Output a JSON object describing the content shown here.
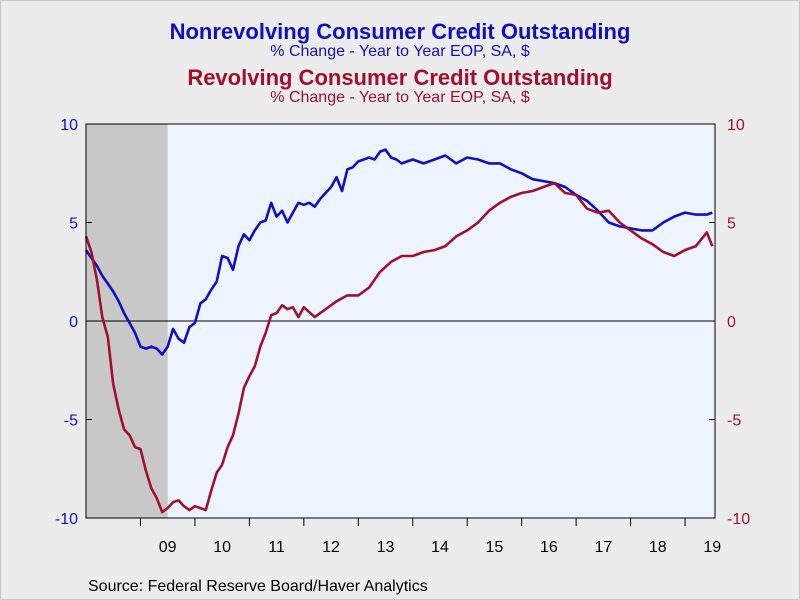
{
  "titles": {
    "nonrevolving_title": "Nonrevolving Consumer Credit Outstanding",
    "nonrevolving_subtitle": "% Change - Year to Year    EOP, SA, $",
    "revolving_title": "Revolving Consumer Credit Outstanding",
    "revolving_subtitle": "% Change - Year to Year    EOP, SA, $"
  },
  "source": "Source:  Federal Reserve Board/Haver Analytics",
  "colors": {
    "nonrevolving": "#1010c0",
    "revolving": "#a01030",
    "plot_bg": "#eef4fd",
    "recession": "#c8c8c8",
    "left_axis_text": "#1010c0",
    "right_axis_text": "#a01030"
  },
  "chart_data": {
    "type": "line",
    "x_unit": "year (decimal)",
    "xlim": [
      2008.0,
      2019.55
    ],
    "ylim": [
      -10,
      10
    ],
    "left_axis_ticks": [
      "10",
      "5",
      "0",
      "-5",
      "-10"
    ],
    "right_axis_ticks": [
      "10",
      "5",
      "0",
      "-5",
      "-10"
    ],
    "x_tick_labels": [
      "09",
      "10",
      "11",
      "12",
      "13",
      "14",
      "15",
      "16",
      "17",
      "18",
      "19"
    ],
    "recession_shading": [
      [
        2008.0,
        2009.5
      ]
    ],
    "zero_line": true,
    "series": [
      {
        "name": "Nonrevolving Consumer Credit Outstanding",
        "axis": "left",
        "x": [
          2008.0,
          2008.1,
          2008.2,
          2008.3,
          2008.4,
          2008.5,
          2008.6,
          2008.7,
          2008.8,
          2008.9,
          2009.0,
          2009.1,
          2009.2,
          2009.3,
          2009.4,
          2009.5,
          2009.6,
          2009.7,
          2009.8,
          2009.9,
          2010.0,
          2010.1,
          2010.2,
          2010.3,
          2010.4,
          2010.5,
          2010.6,
          2010.7,
          2010.8,
          2010.9,
          2011.0,
          2011.1,
          2011.2,
          2011.3,
          2011.4,
          2011.5,
          2011.6,
          2011.7,
          2011.8,
          2011.9,
          2012.0,
          2012.1,
          2012.2,
          2012.3,
          2012.4,
          2012.5,
          2012.6,
          2012.7,
          2012.8,
          2012.9,
          2013.0,
          2013.1,
          2013.2,
          2013.3,
          2013.4,
          2013.5,
          2013.6,
          2013.7,
          2013.8,
          2013.9,
          2014.0,
          2014.2,
          2014.4,
          2014.6,
          2014.8,
          2015.0,
          2015.2,
          2015.4,
          2015.6,
          2015.8,
          2016.0,
          2016.2,
          2016.4,
          2016.6,
          2016.8,
          2017.0,
          2017.2,
          2017.4,
          2017.6,
          2017.8,
          2018.0,
          2018.2,
          2018.4,
          2018.6,
          2018.8,
          2019.0,
          2019.2,
          2019.4,
          2019.5
        ],
        "values": [
          3.6,
          3.2,
          2.8,
          2.3,
          1.9,
          1.5,
          1.0,
          0.4,
          -0.1,
          -0.6,
          -1.3,
          -1.4,
          -1.3,
          -1.4,
          -1.7,
          -1.3,
          -0.4,
          -0.9,
          -1.1,
          -0.3,
          -0.1,
          0.9,
          1.1,
          1.6,
          2.0,
          3.3,
          3.2,
          2.6,
          3.8,
          4.4,
          4.1,
          4.6,
          5.0,
          5.1,
          6.0,
          5.3,
          5.6,
          5.0,
          5.5,
          6.0,
          5.9,
          6.0,
          5.8,
          6.2,
          6.5,
          6.8,
          7.3,
          6.6,
          7.7,
          7.8,
          8.1,
          8.2,
          8.3,
          8.2,
          8.6,
          8.7,
          8.3,
          8.2,
          8.0,
          8.1,
          8.2,
          8.0,
          8.2,
          8.4,
          8.0,
          8.3,
          8.2,
          8.0,
          8.0,
          7.7,
          7.5,
          7.2,
          7.1,
          7.0,
          6.8,
          6.4,
          6.1,
          5.6,
          5.0,
          4.8,
          4.7,
          4.6,
          4.6,
          5.0,
          5.3,
          5.5,
          5.4,
          5.4,
          5.5
        ]
      },
      {
        "name": "Revolving Consumer Credit Outstanding",
        "axis": "right",
        "x": [
          2008.0,
          2008.1,
          2008.2,
          2008.3,
          2008.4,
          2008.5,
          2008.6,
          2008.7,
          2008.8,
          2008.9,
          2009.0,
          2009.1,
          2009.2,
          2009.3,
          2009.4,
          2009.5,
          2009.6,
          2009.7,
          2009.8,
          2009.9,
          2010.0,
          2010.1,
          2010.2,
          2010.3,
          2010.4,
          2010.5,
          2010.6,
          2010.7,
          2010.8,
          2010.9,
          2011.0,
          2011.1,
          2011.2,
          2011.3,
          2011.4,
          2011.5,
          2011.6,
          2011.7,
          2011.8,
          2011.9,
          2012.0,
          2012.2,
          2012.4,
          2012.6,
          2012.8,
          2013.0,
          2013.2,
          2013.4,
          2013.6,
          2013.8,
          2014.0,
          2014.2,
          2014.4,
          2014.6,
          2014.8,
          2015.0,
          2015.2,
          2015.4,
          2015.6,
          2015.8,
          2016.0,
          2016.2,
          2016.4,
          2016.6,
          2016.8,
          2017.0,
          2017.2,
          2017.4,
          2017.6,
          2017.8,
          2018.0,
          2018.2,
          2018.4,
          2018.6,
          2018.8,
          2019.0,
          2019.2,
          2019.4,
          2019.5
        ],
        "values": [
          4.3,
          3.5,
          2.1,
          0.2,
          -0.8,
          -3.2,
          -4.5,
          -5.5,
          -5.8,
          -6.4,
          -6.5,
          -7.6,
          -8.5,
          -9.0,
          -9.7,
          -9.5,
          -9.2,
          -9.1,
          -9.4,
          -9.6,
          -9.4,
          -9.5,
          -9.6,
          -8.6,
          -7.7,
          -7.3,
          -6.4,
          -5.8,
          -4.7,
          -3.4,
          -2.8,
          -2.3,
          -1.3,
          -0.6,
          0.3,
          0.4,
          0.8,
          0.6,
          0.7,
          0.2,
          0.7,
          0.2,
          0.6,
          1.0,
          1.3,
          1.3,
          1.7,
          2.5,
          3.0,
          3.3,
          3.3,
          3.5,
          3.6,
          3.8,
          4.3,
          4.6,
          5.0,
          5.6,
          6.0,
          6.3,
          6.5,
          6.6,
          6.8,
          7.0,
          6.5,
          6.4,
          5.7,
          5.5,
          5.6,
          5.0,
          4.6,
          4.2,
          3.9,
          3.5,
          3.3,
          3.6,
          3.8,
          4.5,
          3.8
        ]
      }
    ]
  }
}
